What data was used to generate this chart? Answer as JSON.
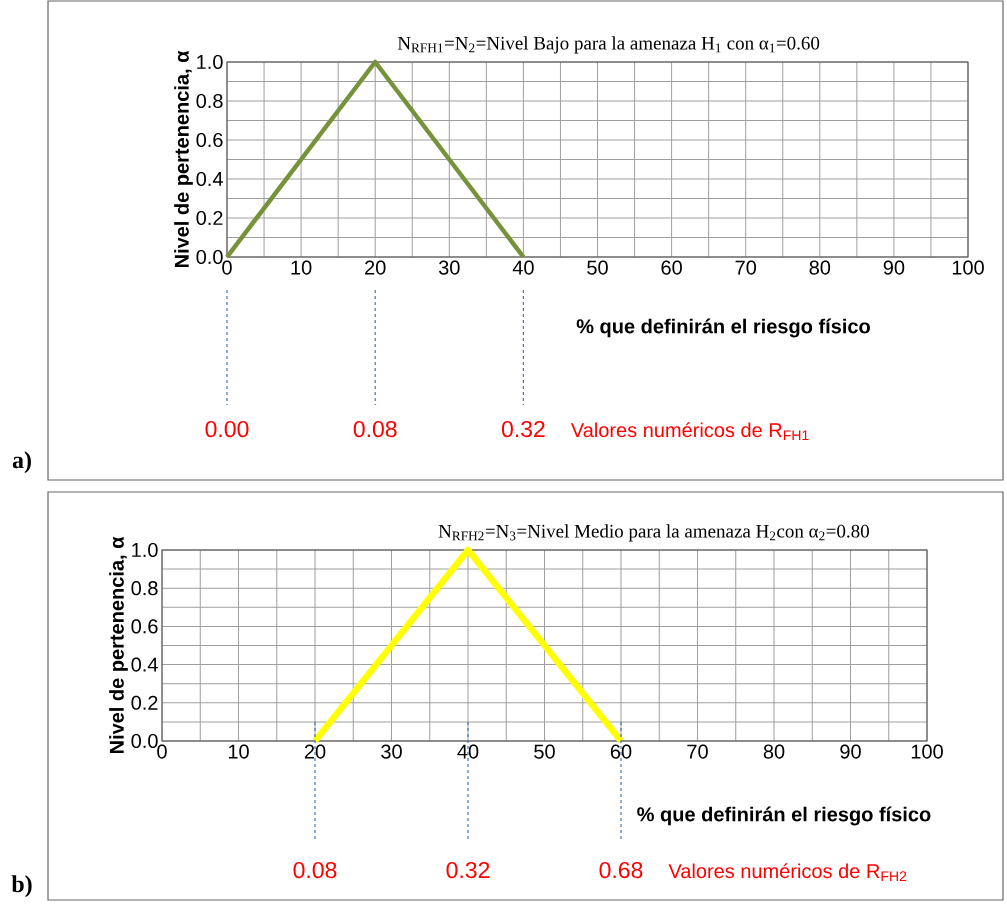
{
  "chart_data": [
    {
      "type": "line",
      "title": "N$_{RFH1}$=N$_{2}$=Nivel Bajo para la amenaza H$_{1}$ con α$_{1}$=0.60",
      "xlabel": "% que definirán el riesgo físico",
      "ylabel": "Nivel de pertenencia, α",
      "x": [
        0,
        20,
        40
      ],
      "series": [
        {
          "color": "#76933c",
          "values": [
            0,
            1,
            0
          ]
        }
      ],
      "xlim": [
        0,
        100
      ],
      "ylim": [
        0,
        1
      ],
      "xticks": [
        0,
        {
          "value": 5,
          "label": null
        },
        10,
        {
          "value": 15,
          "label": null
        },
        20,
        {
          "value": 25,
          "label": null
        },
        30,
        {
          "value": 35,
          "label": null
        },
        40,
        {
          "value": 45,
          "label": null
        },
        50,
        {
          "value": 55,
          "label": null
        },
        60,
        {
          "value": 65,
          "label": null
        },
        70,
        {
          "value": 75,
          "label": null
        },
        80,
        {
          "value": 85,
          "label": null
        },
        90,
        {
          "value": 95,
          "label": null
        },
        100
      ],
      "yticks": [
        {
          "value": 0,
          "label": "0.0"
        },
        {
          "value": 0.1,
          "label": null
        },
        {
          "value": 0.2,
          "label": "0.2"
        },
        {
          "value": 0.3,
          "label": null
        },
        {
          "value": 0.4,
          "label": "0.4"
        },
        {
          "value": 0.5,
          "label": null
        },
        {
          "value": 0.6,
          "label": "0.6"
        },
        {
          "value": 0.7,
          "label": null
        },
        {
          "value": 0.8,
          "label": "0.8"
        },
        {
          "value": 0.9,
          "label": null
        },
        {
          "value": 1,
          "label": "1.0"
        }
      ],
      "grid": true,
      "annotations": [
        {
          "text": "0.00",
          "x": 0
        },
        {
          "text": "0.08",
          "x": 20
        },
        {
          "text": "0.32",
          "x": 40
        },
        "Valores numéricos de R$_{FH1}$",
        "a)"
      ]
    },
    {
      "type": "line",
      "title": "N$_{RFH2}$=N$_{3}$=Nivel Medio para la amenaza H$_{2}$con α$_{2}$=0.80",
      "xlabel": "% que definirán el riesgo físico",
      "ylabel": "Nivel de pertenencia, α",
      "x": [
        20,
        40,
        60
      ],
      "series": [
        {
          "color": "#ffff00",
          "values": [
            0,
            1,
            0
          ]
        }
      ],
      "xlim": [
        0,
        100
      ],
      "ylim": [
        0,
        1
      ],
      "xticks": [
        0,
        {
          "value": 5,
          "label": null
        },
        10,
        {
          "value": 15,
          "label": null
        },
        20,
        {
          "value": 25,
          "label": null
        },
        30,
        {
          "value": 35,
          "label": null
        },
        40,
        {
          "value": 45,
          "label": null
        },
        50,
        {
          "value": 55,
          "label": null
        },
        60,
        {
          "value": 65,
          "label": null
        },
        70,
        {
          "value": 75,
          "label": null
        },
        80,
        {
          "value": 85,
          "label": null
        },
        90,
        {
          "value": 95,
          "label": null
        },
        100
      ],
      "yticks": [
        {
          "value": 0,
          "label": "0.0"
        },
        {
          "value": 0.1,
          "label": null
        },
        {
          "value": 0.2,
          "label": "0.2"
        },
        {
          "value": 0.3,
          "label": null
        },
        {
          "value": 0.4,
          "label": "0.4"
        },
        {
          "value": 0.5,
          "label": null
        },
        {
          "value": 0.6,
          "label": "0.6"
        },
        {
          "value": 0.7,
          "label": null
        },
        {
          "value": 0.8,
          "label": "0.8"
        },
        {
          "value": 0.9,
          "label": null
        },
        {
          "value": 1,
          "label": "1.0"
        }
      ],
      "grid": true,
      "annotations": [
        {
          "text": "0.08",
          "x": 20
        },
        {
          "text": "0.32",
          "x": 40
        },
        {
          "text": "0.68",
          "x": 60
        },
        "Valores numéricos de R$_{FH2}$",
        "b)"
      ]
    }
  ]
}
